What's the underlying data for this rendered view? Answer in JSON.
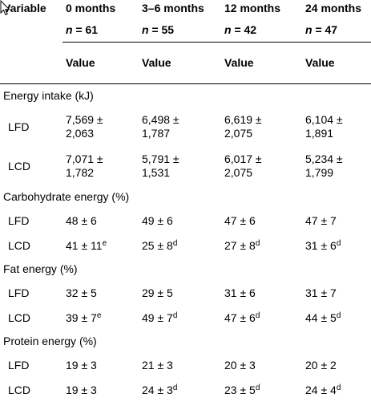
{
  "header": {
    "variable_label": "Variable",
    "columns": [
      "0 months",
      "3–6 months",
      "12 months",
      "24 months"
    ],
    "n_prefix": "n",
    "n_values": [
      "= 61",
      "= 55",
      "= 42",
      "= 47"
    ],
    "value_label": "Value"
  },
  "sections": [
    {
      "label": "Energy intake (kJ)",
      "rows": [
        {
          "group": "LFD",
          "values": [
            [
              "7,569 ±",
              "2,063"
            ],
            [
              "6,498 ±",
              "1,787"
            ],
            [
              "6,619 ±",
              "2,075"
            ],
            [
              "6,104 ±",
              "1,891"
            ]
          ]
        },
        {
          "group": "LCD",
          "values": [
            [
              "7,071 ±",
              "1,782"
            ],
            [
              "5,791 ±",
              "1,531"
            ],
            [
              "6,017 ±",
              "2,075"
            ],
            [
              "5,234 ±",
              "1,799"
            ]
          ]
        }
      ]
    },
    {
      "label": "Carbohydrate energy (%)",
      "rows": [
        {
          "group": "LFD",
          "values": [
            {
              "v": "48 ± 6",
              "sup": ""
            },
            {
              "v": "49 ± 6",
              "sup": ""
            },
            {
              "v": "47 ± 6",
              "sup": ""
            },
            {
              "v": "47 ± 7",
              "sup": ""
            }
          ]
        },
        {
          "group": "LCD",
          "values": [
            {
              "v": "41 ± 11",
              "sup": "e"
            },
            {
              "v": "25 ± 8",
              "sup": "d"
            },
            {
              "v": "27 ± 8",
              "sup": "d"
            },
            {
              "v": "31 ± 6",
              "sup": "d"
            }
          ]
        }
      ]
    },
    {
      "label": "Fat energy (%)",
      "rows": [
        {
          "group": "LFD",
          "values": [
            {
              "v": "32 ± 5",
              "sup": ""
            },
            {
              "v": "29 ± 5",
              "sup": ""
            },
            {
              "v": "31 ± 6",
              "sup": ""
            },
            {
              "v": "31 ± 7",
              "sup": ""
            }
          ]
        },
        {
          "group": "LCD",
          "values": [
            {
              "v": "39 ± 7",
              "sup": "e"
            },
            {
              "v": "49 ± 7",
              "sup": "d"
            },
            {
              "v": "47 ± 6",
              "sup": "d"
            },
            {
              "v": "44 ± 5",
              "sup": "d"
            }
          ]
        }
      ]
    },
    {
      "label": "Protein energy (%)",
      "rows": [
        {
          "group": "LFD",
          "values": [
            {
              "v": "19 ± 3",
              "sup": ""
            },
            {
              "v": "21 ± 3",
              "sup": ""
            },
            {
              "v": "20 ± 3",
              "sup": ""
            },
            {
              "v": "20 ± 2",
              "sup": ""
            }
          ]
        },
        {
          "group": "LCD",
          "values": [
            {
              "v": "19 ± 3",
              "sup": ""
            },
            {
              "v": "24 ± 3",
              "sup": "d"
            },
            {
              "v": "23 ± 5",
              "sup": "d"
            },
            {
              "v": "24 ± 4",
              "sup": "d"
            }
          ]
        }
      ]
    }
  ]
}
